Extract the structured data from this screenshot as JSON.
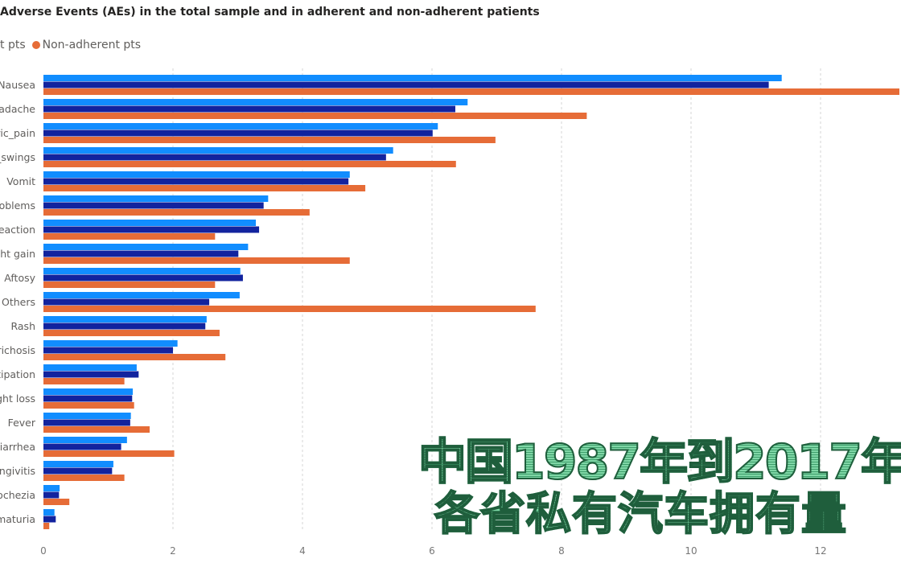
{
  "chart_data": {
    "type": "bar",
    "orientation": "horizontal",
    "title": "Adverse Events (AEs) in the total sample and in adherent and non-adherent patients",
    "categories": [
      "Nausea",
      "adache",
      "ric_pain",
      "_swings",
      "Vomit",
      "oblems",
      "eaction",
      "ht gain",
      "Aftosy",
      "Others",
      "Rash",
      "richosis",
      "tipation",
      "ght loss",
      "Fever",
      "Diarrhea",
      "ngivitis",
      "ochezia",
      "maturia"
    ],
    "series": [
      {
        "color": "#118DFF",
        "values": [
          11.4,
          6.55,
          6.09,
          5.4,
          4.73,
          3.47,
          3.28,
          3.16,
          3.04,
          3.03,
          2.52,
          2.07,
          1.44,
          1.38,
          1.35,
          1.29,
          1.08,
          0.25,
          0.17
        ]
      },
      {
        "name": "t pts",
        "color": "#12239E",
        "values": [
          11.2,
          6.36,
          6.01,
          5.29,
          4.71,
          3.4,
          3.33,
          3.01,
          3.08,
          2.56,
          2.5,
          2.0,
          1.47,
          1.37,
          1.34,
          1.2,
          1.06,
          0.24,
          0.19
        ]
      },
      {
        "name": "Non-adherent pts",
        "color": "#E66C37",
        "values": [
          13.5,
          8.39,
          6.98,
          6.37,
          4.97,
          4.11,
          2.65,
          4.73,
          2.65,
          7.6,
          2.72,
          2.81,
          1.25,
          1.4,
          1.64,
          2.02,
          1.25,
          0.4,
          0.09
        ]
      }
    ],
    "xticks": [
      "0",
      "2",
      "4",
      "6",
      "8",
      "10",
      "12"
    ],
    "xlim": [
      0,
      13.3
    ],
    "grid": true,
    "legend_position": "top-left"
  },
  "overlay": {
    "line1": "中国1987年到2017年",
    "line2": "各省私有汽车拥有量"
  }
}
